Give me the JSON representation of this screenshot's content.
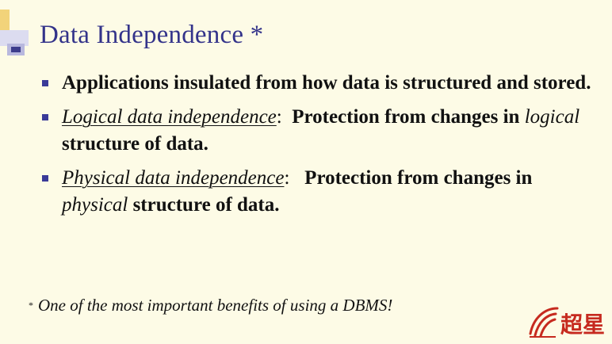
{
  "slide": {
    "title": "Data Independence *",
    "bullets": [
      {
        "text": "Applications insulated from how data is structured and stored."
      },
      {
        "term": "Logical data independence",
        "colon": ":",
        "rest_before": "  Protection from changes in ",
        "emphasis": "logical",
        "rest_after": " structure of data."
      },
      {
        "term": "Physical data independence",
        "colon": ":",
        "rest_before": "   Protection from changes in ",
        "emphasis": "physical",
        "rest_after": " structure of data."
      }
    ],
    "footnote_marker": "*",
    "footnote": "One of the most important benefits of using a DBMS!"
  },
  "watermark": {
    "text": "超星",
    "color": "#c62a1f"
  }
}
